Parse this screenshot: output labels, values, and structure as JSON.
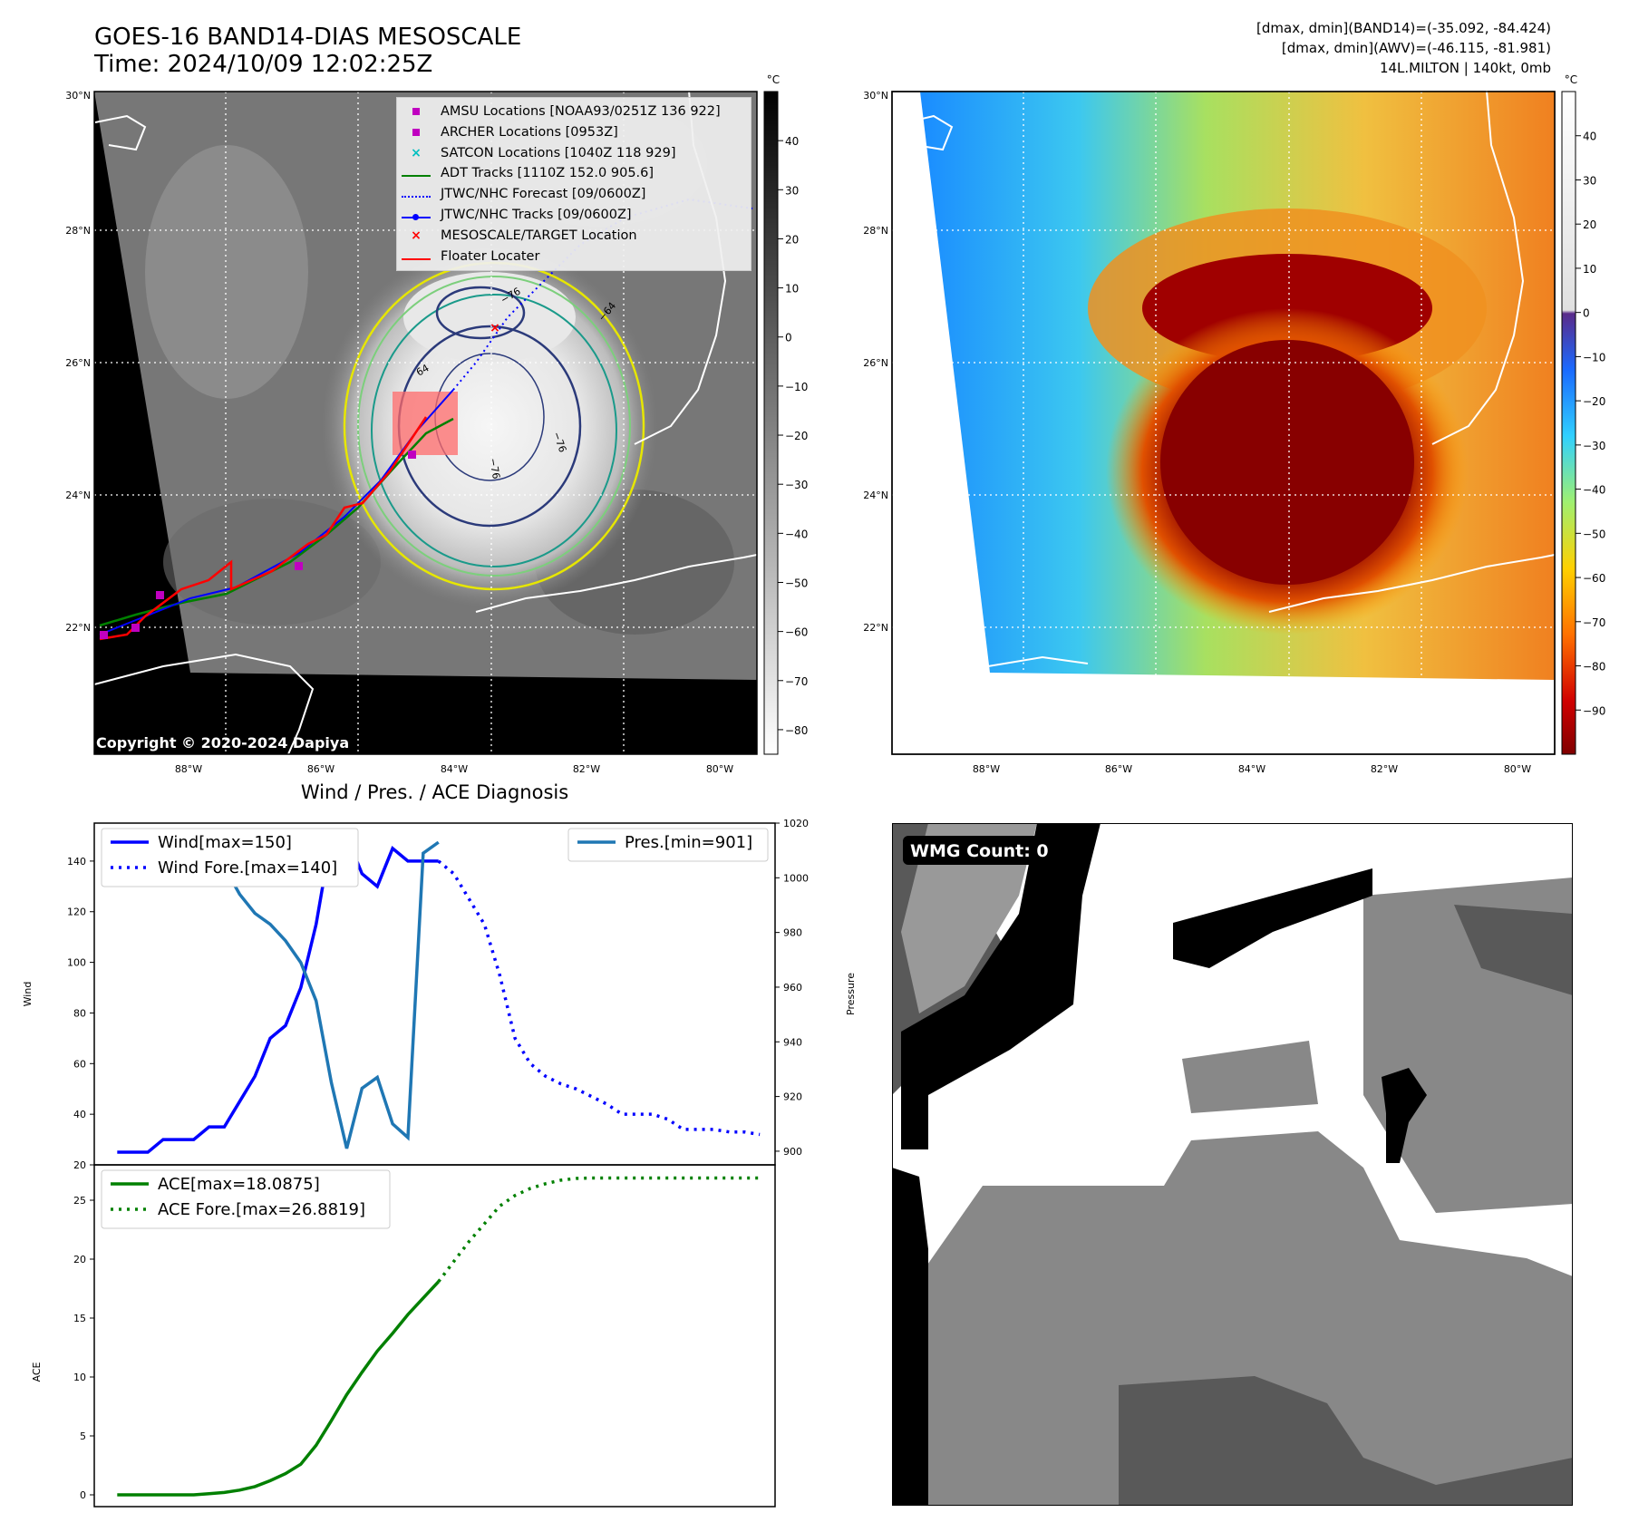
{
  "header": {
    "title_line1": "GOES-16 BAND14-DIAS MESOSCALE",
    "title_line2": "Time: 2024/10/09 12:02:25Z",
    "info_line1": "[dmax, dmin](BAND14)=(-35.092, -84.424)",
    "info_line2": "[dmax, dmin](AWV)=(-46.115, -81.981)",
    "info_line3": "14L.MILTON | 140kt, 0mb"
  },
  "ir_map": {
    "lat_labels": [
      "30°N",
      "28°N",
      "26°N",
      "24°N",
      "22°N"
    ],
    "lon_labels": [
      "88°W",
      "86°W",
      "84°W",
      "82°W",
      "80°W"
    ],
    "colorbar_unit": "°C",
    "colorbar_ticks": [
      "40",
      "30",
      "20",
      "10",
      "0",
      "−10",
      "−20",
      "−30",
      "−40",
      "−50",
      "−60",
      "−70",
      "−80"
    ],
    "contour_labels": [
      "−76",
      "−64",
      "64",
      "−76",
      "−76"
    ],
    "copyright": "Copyright © 2020-2024 Dapiya",
    "legend": [
      {
        "label": "AMSU Locations [NOAA93/0251Z 136 922]",
        "color": "#c000c0",
        "marker": "square"
      },
      {
        "label": "ARCHER Locations [0953Z]",
        "color": "#c000c0",
        "marker": "square"
      },
      {
        "label": "SATCON Locations [1040Z 118 929]",
        "color": "#00c0c0",
        "marker": "x"
      },
      {
        "label": "ADT Tracks [1110Z 152.0 905.6]",
        "color": "#008000",
        "marker": "line"
      },
      {
        "label": "JTWC/NHC Forecast [09/0600Z]",
        "color": "#0000ff",
        "marker": "dotted"
      },
      {
        "label": "JTWC/NHC Tracks [09/0600Z]",
        "color": "#0000ff",
        "marker": "line-dot"
      },
      {
        "label": "MESOSCALE/TARGET Location",
        "color": "#ff0000",
        "marker": "x"
      },
      {
        "label": "Floater Locater",
        "color": "#ff0000",
        "marker": "line"
      }
    ]
  },
  "wv_map": {
    "lat_labels": [
      "30°N",
      "28°N",
      "26°N",
      "24°N",
      "22°N"
    ],
    "lon_labels": [
      "88°W",
      "86°W",
      "84°W",
      "82°W",
      "80°W"
    ],
    "colorbar_unit": "°C",
    "colorbar_ticks": [
      "40",
      "30",
      "20",
      "10",
      "0",
      "−10",
      "−20",
      "−30",
      "−40",
      "−50",
      "−60",
      "−70",
      "−80",
      "−90"
    ]
  },
  "chart_data": [
    {
      "type": "line",
      "title": "Wind / Pres. / ACE Diagnosis",
      "ylabel": "Wind",
      "ylim": [
        20,
        155
      ],
      "yticks": [
        20,
        40,
        60,
        80,
        100,
        120,
        140
      ],
      "y2label": "Pressure",
      "y2lim": [
        895,
        1020
      ],
      "y2ticks": [
        900,
        920,
        940,
        960,
        980,
        1000,
        1020
      ],
      "series": [
        {
          "name": "Wind[max=150]",
          "color": "#0000ff",
          "style": "solid",
          "axis": "left",
          "x": [
            0,
            1,
            2,
            3,
            4,
            5,
            6,
            7,
            8,
            9,
            10,
            11,
            12,
            13,
            14,
            15,
            16,
            17,
            18,
            19,
            20,
            21
          ],
          "values": [
            25,
            25,
            25,
            30,
            30,
            30,
            35,
            35,
            45,
            55,
            70,
            75,
            90,
            115,
            150,
            150,
            135,
            130,
            145,
            140,
            140,
            140
          ]
        },
        {
          "name": "Wind Fore.[max=140]",
          "color": "#0000ff",
          "style": "dotted",
          "axis": "left",
          "x": [
            21,
            22,
            23,
            24,
            25,
            26,
            27,
            28,
            29,
            30,
            31,
            32,
            33,
            34,
            35,
            36,
            37,
            38,
            39,
            40,
            41,
            42
          ],
          "values": [
            140,
            135,
            125,
            115,
            95,
            70,
            60,
            55,
            52,
            50,
            47,
            44,
            40,
            40,
            40,
            38,
            34,
            34,
            34,
            33,
            33,
            32
          ]
        },
        {
          "name": "Pres.[min=901]",
          "color": "#1f77b4",
          "style": "solid",
          "axis": "right",
          "x": [
            0,
            1,
            2,
            3,
            4,
            5,
            6,
            7,
            8,
            9,
            10,
            11,
            12,
            13,
            14,
            15,
            16,
            17,
            18,
            19,
            20,
            21
          ],
          "values": [
            1015,
            1015,
            1015,
            1010,
            1010,
            1008,
            1005,
            1004,
            994,
            987,
            983,
            977,
            969,
            955,
            925,
            901,
            923,
            927,
            910,
            905,
            1009,
            1013
          ]
        }
      ]
    },
    {
      "type": "line",
      "ylabel": "ACE",
      "ylim": [
        -1,
        28
      ],
      "yticks": [
        0,
        5,
        10,
        15,
        20,
        25
      ],
      "series": [
        {
          "name": "ACE[max=18.0875]",
          "color": "#008000",
          "style": "solid",
          "x": [
            0,
            1,
            2,
            3,
            4,
            5,
            6,
            7,
            8,
            9,
            10,
            11,
            12,
            13,
            14,
            15,
            16,
            17,
            18,
            19,
            20,
            21
          ],
          "values": [
            0,
            0,
            0,
            0,
            0,
            0,
            0.1,
            0.2,
            0.4,
            0.7,
            1.2,
            1.8,
            2.6,
            4.2,
            6.3,
            8.5,
            10.4,
            12.2,
            13.7,
            15.3,
            16.7,
            18.0875
          ]
        },
        {
          "name": "ACE Fore.[max=26.8819]",
          "color": "#008000",
          "style": "dotted",
          "x": [
            21,
            22,
            23,
            24,
            25,
            26,
            27,
            28,
            29,
            30,
            31,
            32,
            33,
            34,
            35,
            36,
            37,
            38,
            39,
            40,
            41,
            42
          ],
          "values": [
            18.0875,
            19.8,
            21.5,
            23.0,
            24.5,
            25.4,
            26.0,
            26.4,
            26.7,
            26.85,
            26.88,
            26.88,
            26.88,
            26.88,
            26.88,
            26.88,
            26.88,
            26.88,
            26.88,
            26.88,
            26.88,
            26.8819
          ]
        }
      ]
    }
  ],
  "wmg_panel": {
    "badge": "WMG Count: 0"
  }
}
